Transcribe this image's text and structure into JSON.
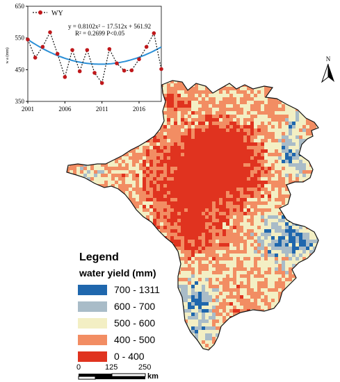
{
  "inset_chart": {
    "series_name": "WY",
    "equation": "y = 0.8102x² − 17.512x + 561.92",
    "r2_line": "R² = 0.2699 P<0.05",
    "ylabel": "w a (mm)",
    "y_ticks": [
      "650",
      "550",
      "450",
      "350"
    ],
    "x_ticks": [
      "2001",
      "2006",
      "2011",
      "2016"
    ],
    "series_color": "#c0181b",
    "trend_color": "#2b8fd6"
  },
  "chart_data": {
    "type": "line",
    "title": "",
    "xlabel": "",
    "ylabel": "w a (mm)",
    "xlim": [
      2001,
      2019
    ],
    "ylim": [
      350,
      650
    ],
    "x": [
      2001,
      2002,
      2003,
      2004,
      2005,
      2006,
      2007,
      2008,
      2009,
      2010,
      2011,
      2012,
      2013,
      2014,
      2015,
      2016,
      2017,
      2018,
      2019
    ],
    "series": [
      {
        "name": "WY",
        "values": [
          545,
          488,
          522,
          568,
          500,
          427,
          512,
          445,
          512,
          440,
          408,
          515,
          470,
          447,
          448,
          483,
          522,
          565,
          452
        ]
      }
    ],
    "trend": {
      "a": 0.8102,
      "b": -17.512,
      "c": 561.92,
      "x_index_base": 2000
    }
  },
  "north_arrow": {
    "label": "N"
  },
  "legend": {
    "title": "Legend",
    "subtitle": "water yield (mm)",
    "items": [
      {
        "label": "700 - 1311",
        "color": "#1f67ad"
      },
      {
        "label": "600 - 700",
        "color": "#a9bcc8"
      },
      {
        "label": "500 - 600",
        "color": "#f3efc4"
      },
      {
        "label": "400 - 500",
        "color": "#f28d63"
      },
      {
        "label": "0 - 400",
        "color": "#e0331f"
      }
    ]
  },
  "scale_bar": {
    "labels": [
      "0",
      "125",
      "250"
    ],
    "unit": "km"
  }
}
